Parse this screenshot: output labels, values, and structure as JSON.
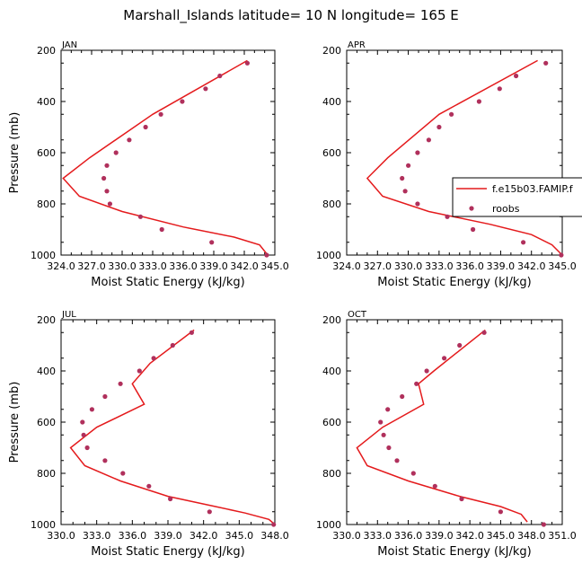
{
  "title": "Marshall_Islands   latitude= 10 N longitude= 165 E",
  "legend": {
    "entries": [
      {
        "label": "f.e15b03.FAMIP.f",
        "style": "line",
        "color": "#e41a1c"
      },
      {
        "label": "roobs",
        "style": "dot",
        "color": "#b0305c"
      }
    ]
  },
  "chart_data": [
    {
      "type": "line",
      "title": "JAN",
      "xlabel": "Moist Static Energy (kJ/kg)",
      "ylabel": "Pressure (mb)",
      "xlim": [
        324.0,
        345.0
      ],
      "ylim": [
        1000,
        200
      ],
      "y_inverted": true,
      "xtick_labels": [
        "324.0",
        "327.0",
        "330.0",
        "333.0",
        "336.0",
        "339.0",
        "342.0",
        "345.0"
      ],
      "ytick_labels": [
        "200",
        "400",
        "600",
        "800",
        "1000"
      ],
      "series": [
        {
          "name": "f.e15b03.FAMIP.f",
          "points": [
            [
              342.3,
              240
            ],
            [
              333.0,
              450
            ],
            [
              326.8,
              620
            ],
            [
              324.2,
              700
            ],
            [
              325.8,
              770
            ],
            [
              330.0,
              830
            ],
            [
              336.0,
              890
            ],
            [
              341.0,
              930
            ],
            [
              343.5,
              960
            ],
            [
              344.3,
              1000
            ]
          ]
        },
        {
          "name": "roobs",
          "points": [
            [
              342.3,
              250
            ],
            [
              339.6,
              300
            ],
            [
              338.2,
              350
            ],
            [
              335.9,
              400
            ],
            [
              333.8,
              450
            ],
            [
              332.3,
              500
            ],
            [
              330.7,
              550
            ],
            [
              329.4,
              600
            ],
            [
              328.5,
              650
            ],
            [
              328.2,
              700
            ],
            [
              328.5,
              750
            ],
            [
              328.8,
              800
            ],
            [
              331.8,
              850
            ],
            [
              333.9,
              900
            ],
            [
              338.8,
              950
            ],
            [
              344.2,
              1000
            ]
          ]
        }
      ]
    },
    {
      "type": "line",
      "title": "APR",
      "xlabel": "Moist Static Energy (kJ/kg)",
      "ylabel": "Pressure (mb)",
      "xlim": [
        324.0,
        345.0
      ],
      "ylim": [
        1000,
        200
      ],
      "y_inverted": true,
      "xtick_labels": [
        "324.0",
        "327.0",
        "330.0",
        "333.0",
        "336.0",
        "339.0",
        "342.0",
        "345.0"
      ],
      "ytick_labels": [
        "200",
        "400",
        "600",
        "800",
        "1000"
      ],
      "series": [
        {
          "name": "f.e15b03.FAMIP.f",
          "points": [
            [
              342.6,
              240
            ],
            [
              333.0,
              450
            ],
            [
              328.0,
              620
            ],
            [
              326.0,
              700
            ],
            [
              327.5,
              770
            ],
            [
              332.0,
              830
            ],
            [
              338.0,
              880
            ],
            [
              342.0,
              920
            ],
            [
              344.0,
              960
            ],
            [
              345.0,
              1000
            ]
          ]
        },
        {
          "name": "roobs",
          "points": [
            [
              343.4,
              250
            ],
            [
              340.5,
              300
            ],
            [
              338.9,
              350
            ],
            [
              336.9,
              400
            ],
            [
              334.2,
              450
            ],
            [
              333.0,
              500
            ],
            [
              332.0,
              550
            ],
            [
              330.9,
              600
            ],
            [
              330.0,
              650
            ],
            [
              329.4,
              700
            ],
            [
              329.7,
              750
            ],
            [
              330.9,
              800
            ],
            [
              333.8,
              850
            ],
            [
              336.3,
              900
            ],
            [
              341.2,
              950
            ],
            [
              344.9,
              1000
            ]
          ]
        }
      ]
    },
    {
      "type": "line",
      "title": "JUL",
      "xlabel": "Moist Static Energy (kJ/kg)",
      "ylabel": "Pressure (mb)",
      "xlim": [
        330.0,
        348.0
      ],
      "ylim": [
        1000,
        200
      ],
      "y_inverted": true,
      "xtick_labels": [
        "330.0",
        "333.0",
        "336.0",
        "339.0",
        "342.0",
        "345.0",
        "348.0"
      ],
      "ytick_labels": [
        "200",
        "400",
        "600",
        "800",
        "1000"
      ],
      "series": [
        {
          "name": "f.e15b03.FAMIP.f",
          "points": [
            [
              341.2,
              240
            ],
            [
              337.5,
              370
            ],
            [
              336.0,
              450
            ],
            [
              337.0,
              530
            ],
            [
              333.0,
              620
            ],
            [
              330.8,
              700
            ],
            [
              332.0,
              770
            ],
            [
              335.0,
              830
            ],
            [
              339.0,
              890
            ],
            [
              343.0,
              930
            ],
            [
              345.5,
              955
            ],
            [
              347.5,
              980
            ],
            [
              348.0,
              1000
            ]
          ]
        },
        {
          "name": "roobs",
          "points": [
            [
              341.0,
              250
            ],
            [
              339.4,
              300
            ],
            [
              337.8,
              350
            ],
            [
              336.6,
              400
            ],
            [
              335.0,
              450
            ],
            [
              333.7,
              500
            ],
            [
              332.6,
              550
            ],
            [
              331.8,
              600
            ],
            [
              331.9,
              650
            ],
            [
              332.2,
              700
            ],
            [
              333.7,
              750
            ],
            [
              335.2,
              800
            ],
            [
              337.4,
              850
            ],
            [
              339.2,
              900
            ],
            [
              342.5,
              950
            ],
            [
              347.9,
              1000
            ]
          ]
        }
      ]
    },
    {
      "type": "line",
      "title": "OCT",
      "xlabel": "Moist Static Energy (kJ/kg)",
      "ylabel": "Pressure (mb)",
      "xlim": [
        330.0,
        351.0
      ],
      "ylim": [
        1000,
        200
      ],
      "y_inverted": true,
      "xtick_labels": [
        "330.0",
        "333.0",
        "336.0",
        "339.0",
        "342.0",
        "345.0",
        "348.0",
        "351.0"
      ],
      "ytick_labels": [
        "200",
        "400",
        "600",
        "800",
        "1000"
      ],
      "series": [
        {
          "name": "f.e15b03.FAMIP.f",
          "points": [
            [
              343.5,
              240
            ],
            [
              338.5,
              400
            ],
            [
              337.0,
              450
            ],
            [
              337.5,
              530
            ],
            [
              333.5,
              620
            ],
            [
              331.0,
              700
            ],
            [
              332.0,
              770
            ],
            [
              336.0,
              830
            ],
            [
              341.0,
              890
            ],
            [
              345.0,
              930
            ],
            [
              347.0,
              960
            ],
            [
              347.6,
              990
            ]
          ]
        },
        {
          "name": "roobs",
          "points": [
            [
              343.4,
              250
            ],
            [
              341.0,
              300
            ],
            [
              339.5,
              350
            ],
            [
              337.8,
              400
            ],
            [
              336.8,
              450
            ],
            [
              335.4,
              500
            ],
            [
              334.0,
              550
            ],
            [
              333.3,
              600
            ],
            [
              333.6,
              650
            ],
            [
              334.1,
              700
            ],
            [
              334.9,
              750
            ],
            [
              336.5,
              800
            ],
            [
              338.6,
              850
            ],
            [
              341.2,
              900
            ],
            [
              345.0,
              950
            ],
            [
              349.2,
              1000
            ]
          ]
        }
      ]
    }
  ]
}
